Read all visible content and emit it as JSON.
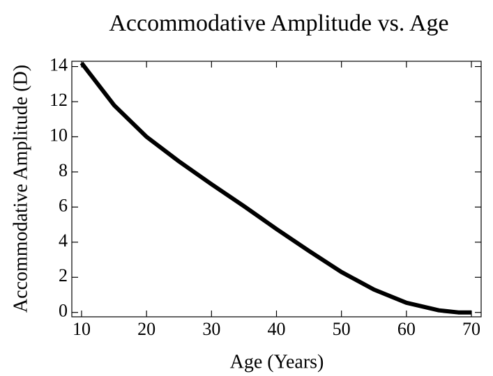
{
  "chart_data": {
    "type": "line",
    "title": "Accommodative Amplitude vs. Age",
    "x_label": "Age (Years)",
    "y_label": "Accommodative Amplitude (D)",
    "x": [
      10,
      15,
      20,
      25,
      30,
      35,
      40,
      45,
      50,
      55,
      60,
      65,
      68,
      70
    ],
    "series": [
      {
        "name": "Accommodative Amplitude",
        "color": "#000000",
        "values": [
          14.2,
          11.8,
          10.0,
          8.6,
          7.3,
          6.05,
          4.75,
          3.5,
          2.3,
          1.3,
          0.55,
          0.12,
          0.0,
          0.0
        ]
      }
    ],
    "xlim": [
      8.5,
      71.5
    ],
    "xticks": [
      10,
      20,
      30,
      40,
      50,
      60,
      70
    ],
    "ylim": [
      -0.25,
      14.3
    ],
    "yticks": [
      0,
      2,
      4,
      6,
      8,
      10,
      12,
      14
    ],
    "grid": false
  }
}
